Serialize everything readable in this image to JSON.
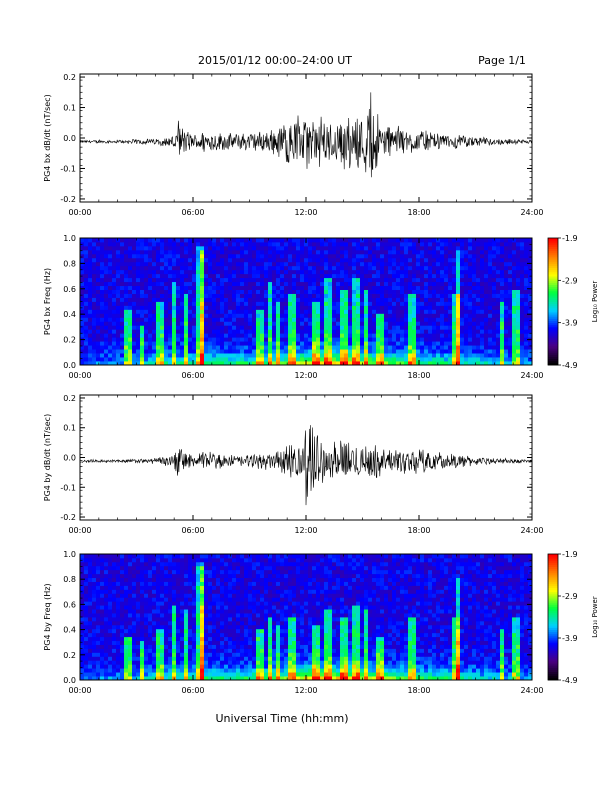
{
  "header": {
    "title": "2015/01/12  00:00–24:00 UT",
    "page": "Page 1/1"
  },
  "footer": {
    "xlabel": "Universal Time (hh:mm)"
  },
  "colorbar": {
    "label": "Log₁₀ Power",
    "ticks": [
      "-1.9",
      "-2.9",
      "-3.9",
      "-4.9"
    ],
    "range": [
      -4.9,
      -1.9
    ],
    "colors": [
      "#000000",
      "#4b0082",
      "#0000ff",
      "#00d0ff",
      "#00ff40",
      "#ffff00",
      "#ff8000",
      "#ff0000"
    ]
  },
  "chart_data": [
    {
      "type": "line",
      "ylabel": "PG4 bx dB/dt (nT/sec)",
      "xlim": [
        0,
        24
      ],
      "ylim": [
        -0.21,
        0.21
      ],
      "xticks": [
        "00:00",
        "06:00",
        "12:00",
        "18:00",
        "24:00"
      ],
      "yticks": [
        "0.2",
        "0.1",
        "0.0",
        "-0.1",
        "-0.2"
      ],
      "envelope": {
        "hour": [
          0,
          2,
          4,
          4.9,
          5.2,
          6,
          6.5,
          8,
          10,
          11,
          12,
          13,
          14,
          15,
          15.5,
          16,
          17,
          18,
          19,
          20,
          22,
          24
        ],
        "amplitude": [
          0.005,
          0.006,
          0.012,
          0.02,
          0.07,
          0.025,
          0.04,
          0.03,
          0.04,
          0.08,
          0.09,
          0.08,
          0.09,
          0.1,
          0.17,
          0.07,
          0.05,
          0.04,
          0.03,
          0.025,
          0.012,
          0.006
        ]
      }
    },
    {
      "type": "heatmap",
      "ylabel": "PG4 bx Freq (Hz)",
      "xlim": [
        0,
        24
      ],
      "ylim": [
        0,
        1.0
      ],
      "xticks": [
        "00:00",
        "06:00",
        "12:00",
        "18:00",
        "24:00"
      ],
      "yticks": [
        "1.0",
        "0.8",
        "0.6",
        "0.4",
        "0.2",
        "0.0"
      ],
      "zrange": [
        -4.9,
        -1.9
      ],
      "bursts_hour": [
        2.5,
        3.3,
        4.2,
        5.0,
        5.6,
        6.4,
        6.5,
        9.6,
        10.1,
        10.5,
        11.2,
        12.5,
        13.1,
        14.0,
        14.6,
        15.2,
        16.0,
        17.6,
        19.9,
        20.1,
        22.4,
        23.1
      ],
      "burst_top_freq": [
        0.45,
        0.3,
        0.5,
        0.65,
        0.55,
        0.95,
        0.9,
        0.45,
        0.65,
        0.5,
        0.55,
        0.5,
        0.7,
        0.6,
        0.7,
        0.6,
        0.4,
        0.55,
        0.55,
        0.9,
        0.5,
        0.6
      ]
    },
    {
      "type": "line",
      "ylabel": "PG4 by dB/dt (nT/sec)",
      "xlim": [
        0,
        24
      ],
      "ylim": [
        -0.21,
        0.21
      ],
      "xticks": [
        "00:00",
        "06:00",
        "12:00",
        "18:00",
        "24:00"
      ],
      "yticks": [
        "0.2",
        "0.1",
        "0.0",
        "-0.1",
        "-0.2"
      ],
      "envelope": {
        "hour": [
          0,
          2,
          4,
          4.9,
          5.2,
          6,
          6.5,
          8,
          10,
          11,
          11.8,
          12,
          13,
          14,
          15,
          16,
          17,
          18,
          19,
          20,
          22,
          24
        ],
        "amplitude": [
          0.005,
          0.006,
          0.01,
          0.02,
          0.06,
          0.02,
          0.035,
          0.02,
          0.03,
          0.05,
          0.07,
          0.18,
          0.06,
          0.07,
          0.07,
          0.05,
          0.04,
          0.05,
          0.03,
          0.025,
          0.01,
          0.006
        ]
      }
    },
    {
      "type": "heatmap",
      "ylabel": "PG4 by Freq (Hz)",
      "xlim": [
        0,
        24
      ],
      "ylim": [
        0,
        1.0
      ],
      "xticks": [
        "00:00",
        "06:00",
        "12:00",
        "18:00",
        "24:00"
      ],
      "yticks": [
        "1.0",
        "0.8",
        "0.6",
        "0.4",
        "0.2",
        "0.0"
      ],
      "zrange": [
        -4.9,
        -1.9
      ],
      "bursts_hour": [
        2.5,
        3.3,
        4.2,
        5.0,
        5.6,
        6.4,
        6.5,
        9.6,
        10.1,
        10.5,
        11.2,
        12.5,
        13.1,
        14.0,
        14.6,
        15.2,
        16.0,
        17.6,
        19.9,
        20.1,
        22.4,
        23.1
      ],
      "burst_top_freq": [
        0.35,
        0.3,
        0.4,
        0.6,
        0.55,
        0.95,
        0.9,
        0.4,
        0.5,
        0.45,
        0.5,
        0.45,
        0.55,
        0.5,
        0.6,
        0.55,
        0.35,
        0.5,
        0.5,
        0.8,
        0.4,
        0.5
      ]
    }
  ]
}
